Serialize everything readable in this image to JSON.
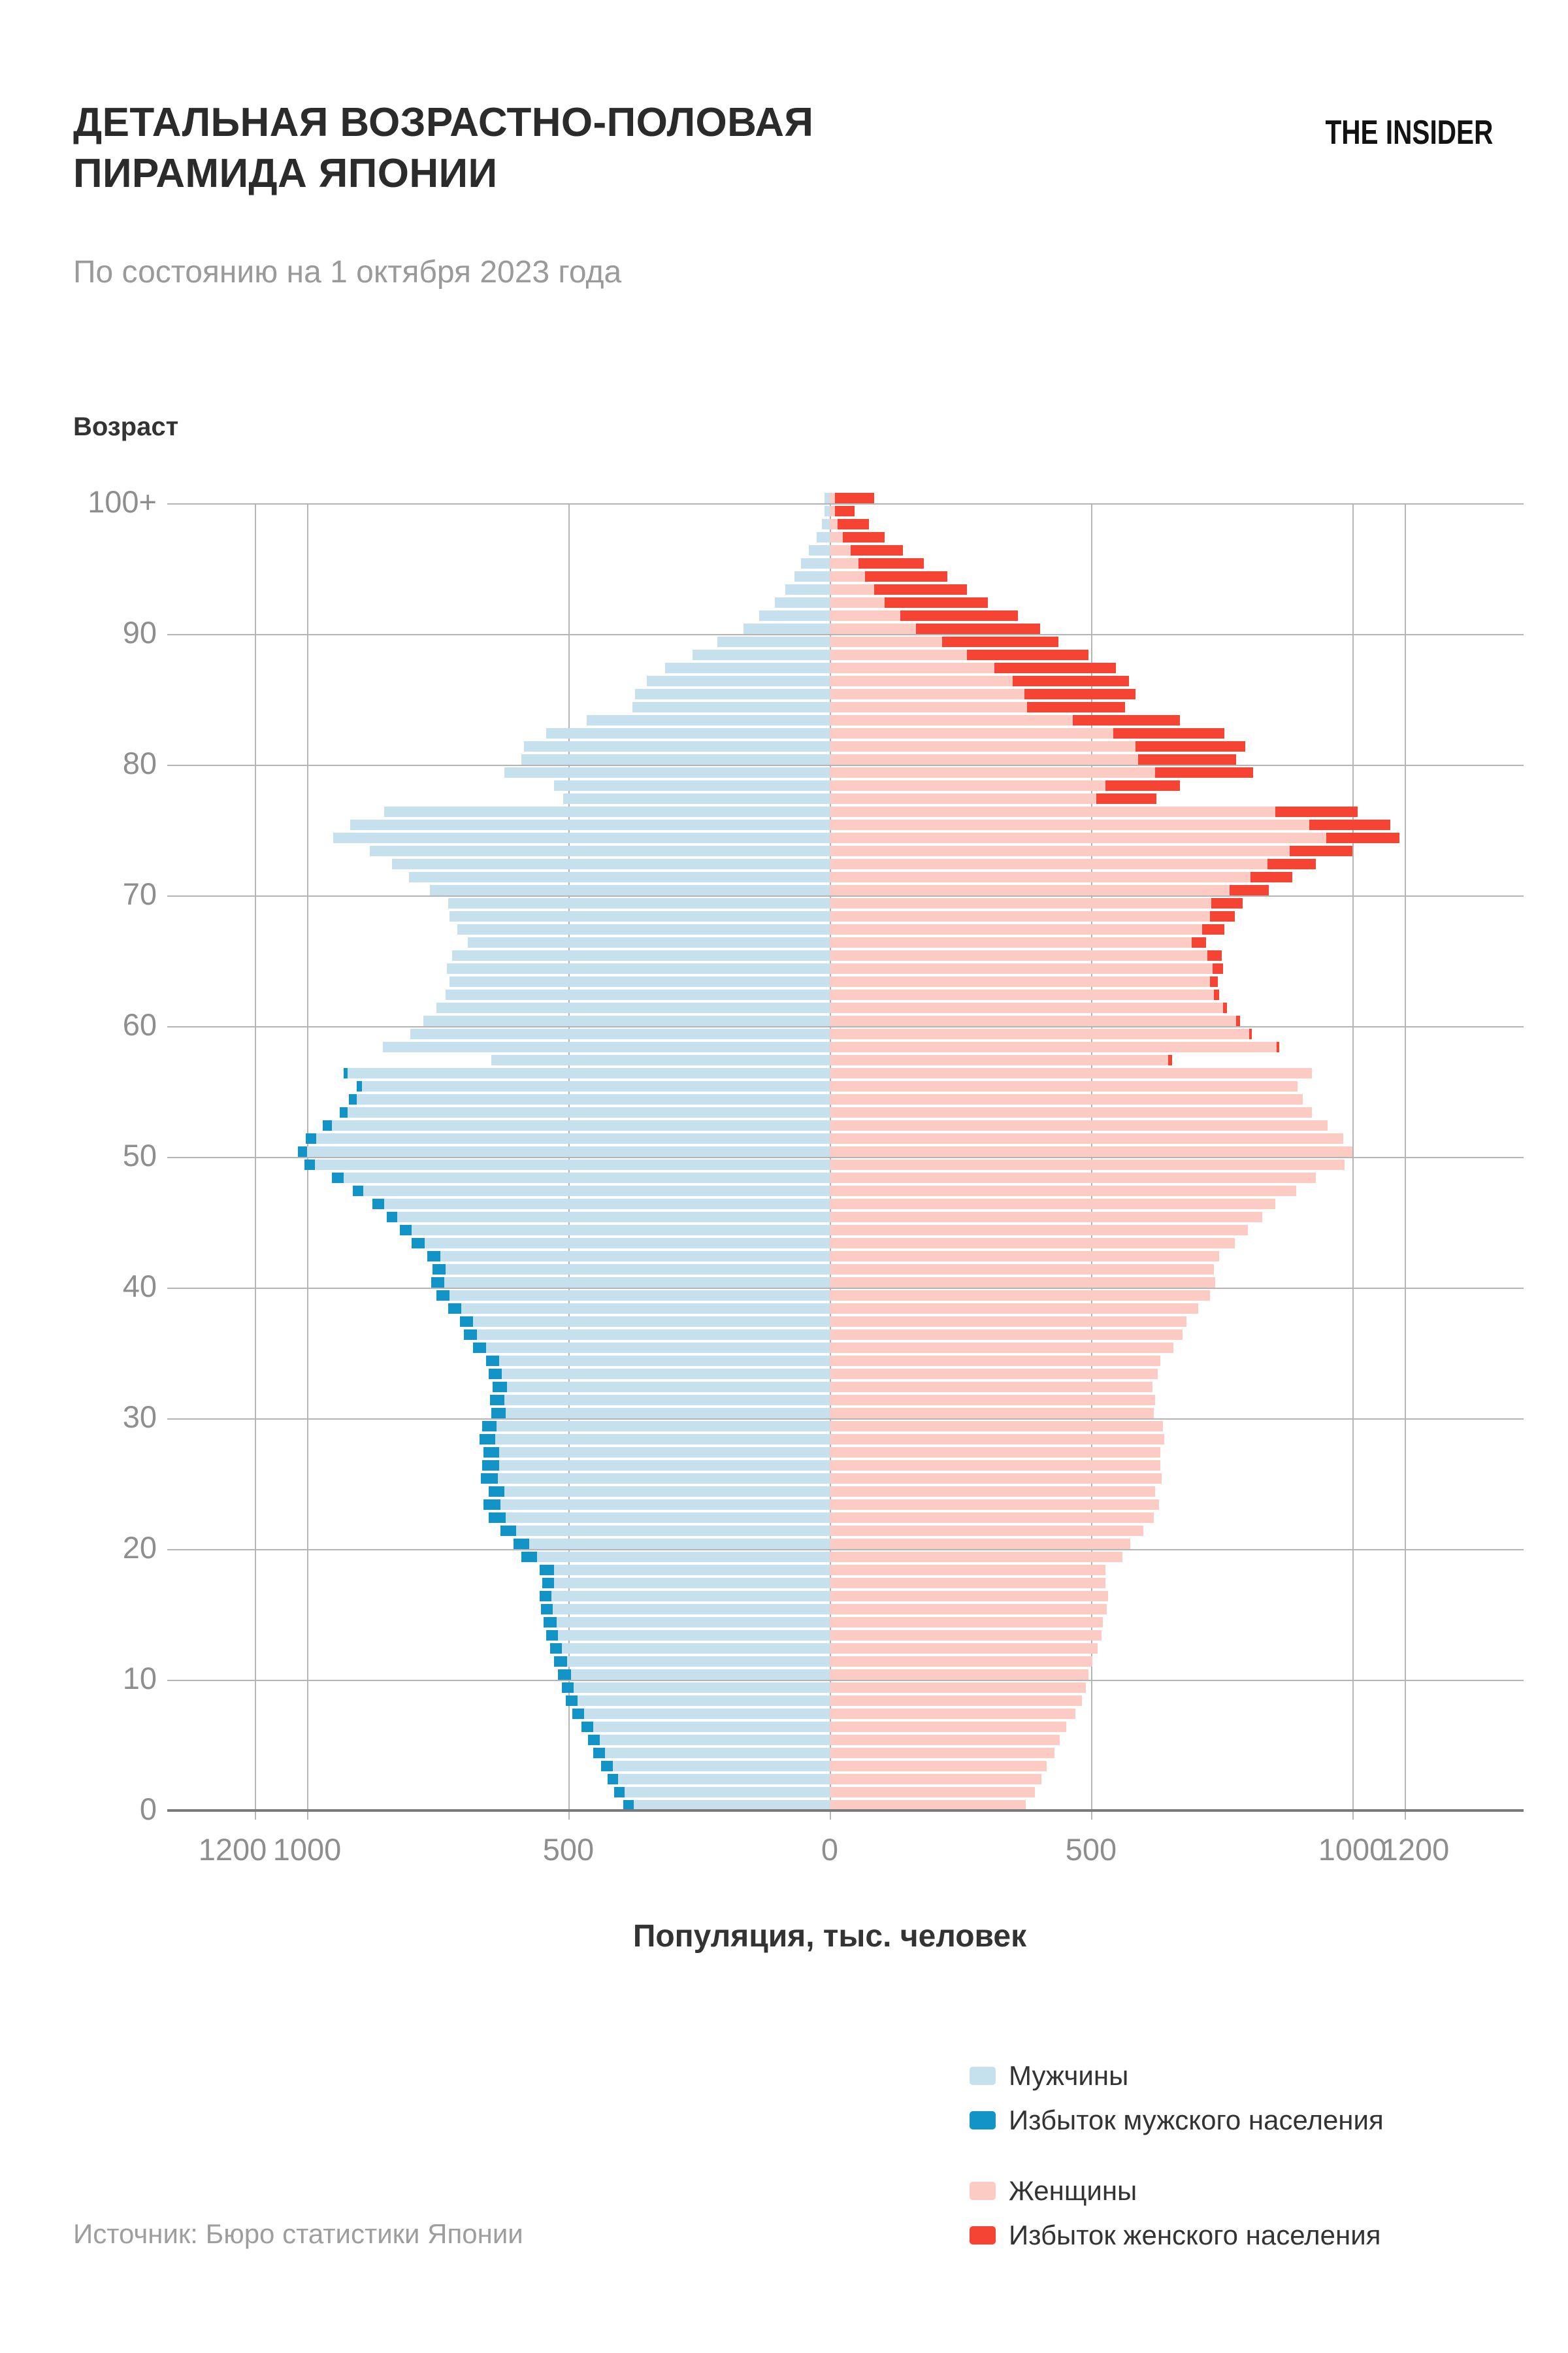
{
  "header": {
    "title_line1": "ДЕТАЛЬНАЯ ВОЗРАСТНО-ПОЛОВАЯ",
    "title_line2": "ПИРАМИДА ЯПОНИИ",
    "logo": "THE INSIDER",
    "subtitle": "По состоянию на 1 октября 2023 года"
  },
  "chart": {
    "y_axis_title": "Возраст",
    "x_axis_title": "Популяция, тыс. человек",
    "y_ticks": [
      {
        "label": "100+",
        "age": 100
      },
      {
        "label": "90",
        "age": 90
      },
      {
        "label": "80",
        "age": 80
      },
      {
        "label": "70",
        "age": 70
      },
      {
        "label": "60",
        "age": 60
      },
      {
        "label": "50",
        "age": 50
      },
      {
        "label": "40",
        "age": 40
      },
      {
        "label": "30",
        "age": 30
      },
      {
        "label": "20",
        "age": 20
      },
      {
        "label": "10",
        "age": 10
      },
      {
        "label": "0",
        "age": 0
      }
    ],
    "x_tick_labels": [
      "1200",
      "1000",
      "500",
      "0",
      "500",
      "1000",
      "1200"
    ],
    "colors": {
      "male": "#c6e0ee",
      "male_excess": "#1295c6",
      "female": "#fbcbc4",
      "female_excess": "#f54334",
      "gridline": "#b5b5b5",
      "axis": "#7a7a7a"
    }
  },
  "chart_data": {
    "type": "bar",
    "subtype": "population-pyramid",
    "title": "Детальная возрастно-половая пирамида Японии, на 1 октября 2023",
    "xlabel": "Популяция, тыс. человек",
    "ylabel": "Возраст",
    "x_range_units": [
      -1200,
      1200
    ],
    "ages_note": "index = age in years, 0..99, last = 100+",
    "age_labels_shown": [
      "0",
      "10",
      "20",
      "30",
      "40",
      "50",
      "60",
      "70",
      "80",
      "90",
      "100+"
    ],
    "series": [
      {
        "name": "Мужчины",
        "values": [
          395,
          413,
          426,
          438,
          452,
          463,
          476,
          492,
          505,
          512,
          519,
          527,
          536,
          543,
          547,
          553,
          556,
          551,
          556,
          590,
          604,
          630,
          652,
          662,
          653,
          667,
          664,
          662,
          669,
          666,
          648,
          651,
          645,
          653,
          658,
          683,
          700,
          708,
          730,
          752,
          762,
          760,
          769,
          800,
          822,
          848,
          874,
          912,
          952,
          1006,
          1018,
          1002,
          970,
          938,
          920,
          905,
          930,
          648,
          855,
          802,
          778,
          752,
          735,
          728,
          732,
          722,
          692,
          712,
          727,
          731,
          766,
          804,
          838,
          881,
          950,
          917,
          852,
          511,
          528,
          622,
          590,
          585,
          542,
          465,
          377,
          372,
          350,
          315,
          262,
          214,
          165,
          135,
          105,
          85,
          68,
          56,
          39,
          26,
          16,
          9,
          10
        ]
      },
      {
        "name": "Женщины",
        "values": [
          374,
          392,
          404,
          416,
          429,
          440,
          453,
          469,
          482,
          489,
          496,
          503,
          512,
          519,
          523,
          529,
          532,
          527,
          528,
          560,
          574,
          599,
          620,
          630,
          622,
          635,
          633,
          632,
          639,
          637,
          619,
          623,
          618,
          627,
          632,
          657,
          674,
          683,
          705,
          727,
          737,
          735,
          744,
          776,
          800,
          828,
          852,
          892,
          930,
          984,
          1000,
          982,
          952,
          922,
          906,
          894,
          922,
          654,
          860,
          808,
          786,
          761,
          746,
          743,
          753,
          749,
          720,
          754,
          776,
          791,
          839,
          885,
          931,
          1000,
          1090,
          1072,
          1010,
          626,
          669,
          809,
          778,
          795,
          755,
          670,
          565,
          586,
          573,
          547,
          494,
          438,
          403,
          359,
          302,
          262,
          225,
          180,
          140,
          105,
          75,
          48,
          85
        ]
      }
    ],
    "excess_note": "Тёмный сегмент на конце полосы = |М−Ж| для данного возраста",
    "legend_position": "bottom-right",
    "grid": true
  },
  "legend": {
    "items": [
      {
        "label": "Мужчины",
        "color": "#c6e0ee"
      },
      {
        "label": "Избыток мужского населения",
        "color": "#1295c6"
      },
      {
        "label": "Женщины",
        "color": "#fbcbc4"
      },
      {
        "label": "Избыток женского населения",
        "color": "#f54334"
      }
    ]
  },
  "source": "Источник: Бюро статистики Японии"
}
